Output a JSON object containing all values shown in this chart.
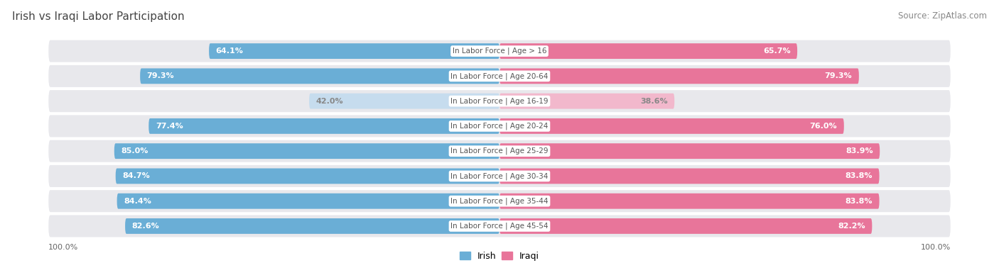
{
  "title": "Irish vs Iraqi Labor Participation",
  "source": "Source: ZipAtlas.com",
  "categories": [
    "In Labor Force | Age > 16",
    "In Labor Force | Age 20-64",
    "In Labor Force | Age 16-19",
    "In Labor Force | Age 20-24",
    "In Labor Force | Age 25-29",
    "In Labor Force | Age 30-34",
    "In Labor Force | Age 35-44",
    "In Labor Force | Age 45-54"
  ],
  "irish_values": [
    64.1,
    79.3,
    42.0,
    77.4,
    85.0,
    84.7,
    84.4,
    82.6
  ],
  "iraqi_values": [
    65.7,
    79.3,
    38.6,
    76.0,
    83.9,
    83.8,
    83.8,
    82.2
  ],
  "irish_color_strong": "#6aaed6",
  "irish_color_light": "#c6dcee",
  "iraqi_color_strong": "#e8759a",
  "iraqi_color_light": "#f2b8cc",
  "row_bg_color": "#e8e8ec",
  "title_fontsize": 11,
  "source_fontsize": 8.5,
  "value_fontsize": 8,
  "label_fontsize": 7.5,
  "legend_fontsize": 9,
  "bottom_label": "100.0%",
  "light_threshold": 50.0,
  "total_width": 100.0
}
